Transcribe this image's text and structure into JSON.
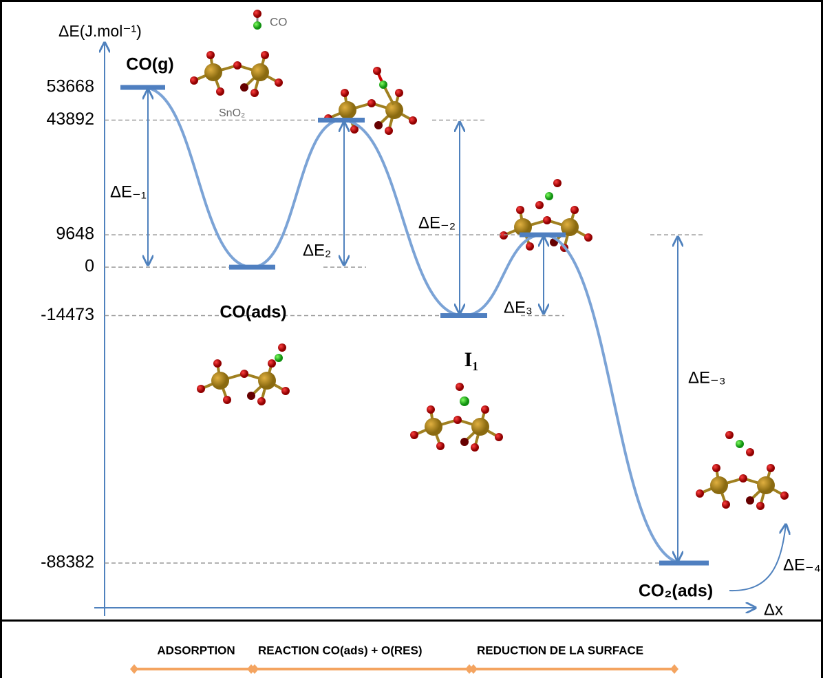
{
  "axis": {
    "y_label": "ΔE(J.mol⁻¹)",
    "x_label": "Δx",
    "yticks": [
      53668,
      43892,
      9648,
      0,
      -14473,
      -88382
    ]
  },
  "levels": [
    {
      "label": "CO(g)",
      "value": 53668
    },
    {
      "label": "CO(ads)",
      "value": 0
    },
    {
      "value": 43892
    },
    {
      "label": "I₁",
      "value": -14473
    },
    {
      "value": 9648
    },
    {
      "label": "CO₂(ads)",
      "value": -88382
    }
  ],
  "annotations": [
    "ΔE₋₁",
    "ΔE₂",
    "ΔE₋₂",
    "ΔE₃",
    "ΔE₋₃",
    "ΔE₋₄"
  ],
  "legend": {
    "molecule": "CO",
    "surface": "SnO₂"
  },
  "phases": [
    "ADSORPTION",
    "REACTION CO(ads) + O(RES)",
    "REDUCTION DE LA SURFACE"
  ]
}
